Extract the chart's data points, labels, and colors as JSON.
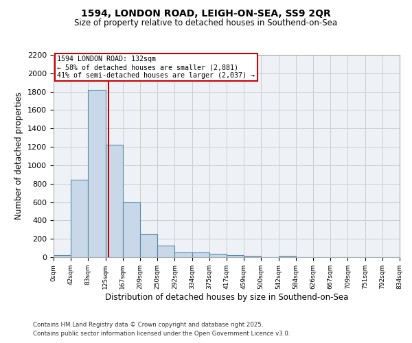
{
  "title1": "1594, LONDON ROAD, LEIGH-ON-SEA, SS9 2QR",
  "title2": "Size of property relative to detached houses in Southend-on-Sea",
  "xlabel": "Distribution of detached houses by size in Southend-on-Sea",
  "ylabel": "Number of detached properties",
  "bin_edges": [
    0,
    42,
    83,
    125,
    167,
    209,
    250,
    292,
    334,
    375,
    417,
    459,
    500,
    542,
    584,
    626,
    667,
    709,
    751,
    792,
    834
  ],
  "bar_heights": [
    25,
    845,
    1820,
    1220,
    600,
    255,
    125,
    55,
    50,
    35,
    25,
    15,
    0,
    15,
    0,
    0,
    0,
    0,
    0,
    0
  ],
  "bar_facecolor": "#c8d8e8",
  "bar_edgecolor": "#5588aa",
  "bar_linewidth": 0.8,
  "grid_color": "#cccccc",
  "background_color": "#eef2f7",
  "red_line_x": 132,
  "annotation_title": "1594 LONDON ROAD: 132sqm",
  "annotation_line1": "← 58% of detached houses are smaller (2,881)",
  "annotation_line2": "41% of semi-detached houses are larger (2,037) →",
  "annotation_box_color": "#ffffff",
  "annotation_box_edgecolor": "#cc0000",
  "red_line_color": "#cc0000",
  "ylim": [
    0,
    2200
  ],
  "yticks": [
    0,
    200,
    400,
    600,
    800,
    1000,
    1200,
    1400,
    1600,
    1800,
    2000,
    2200
  ],
  "footer_line1": "Contains HM Land Registry data © Crown copyright and database right 2025.",
  "footer_line2": "Contains public sector information licensed under the Open Government Licence v3.0."
}
